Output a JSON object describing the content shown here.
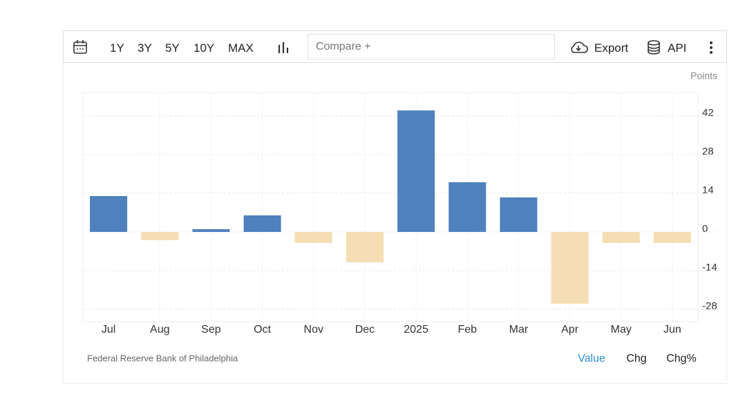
{
  "toolbar": {
    "ranges": [
      "1Y",
      "3Y",
      "5Y",
      "10Y",
      "MAX"
    ],
    "compare_placeholder": "Compare +",
    "export": "Export",
    "api": "API"
  },
  "chart_data": {
    "type": "bar",
    "y_unit_label": "Points",
    "categories": [
      "Jul",
      "Aug",
      "Sep",
      "Oct",
      "Nov",
      "Dec",
      "2025",
      "Feb",
      "Mar",
      "Apr",
      "May",
      "Jun"
    ],
    "values": [
      13,
      -3,
      1,
      6,
      -4,
      -11,
      44,
      18,
      12.5,
      -26,
      -4,
      -4
    ],
    "color_positive": "#4f81bd",
    "color_negative": "#f5deb3",
    "ylim": [
      -32.5,
      50.5
    ],
    "yticks": [
      -28,
      -14,
      0,
      14,
      28,
      42
    ],
    "grid": true,
    "y_axis_side": "right"
  },
  "footer": {
    "source": "Federal Reserve Bank of Philadelphia",
    "modes": [
      "Value",
      "Chg",
      "Chg%"
    ],
    "active_mode": 0
  }
}
